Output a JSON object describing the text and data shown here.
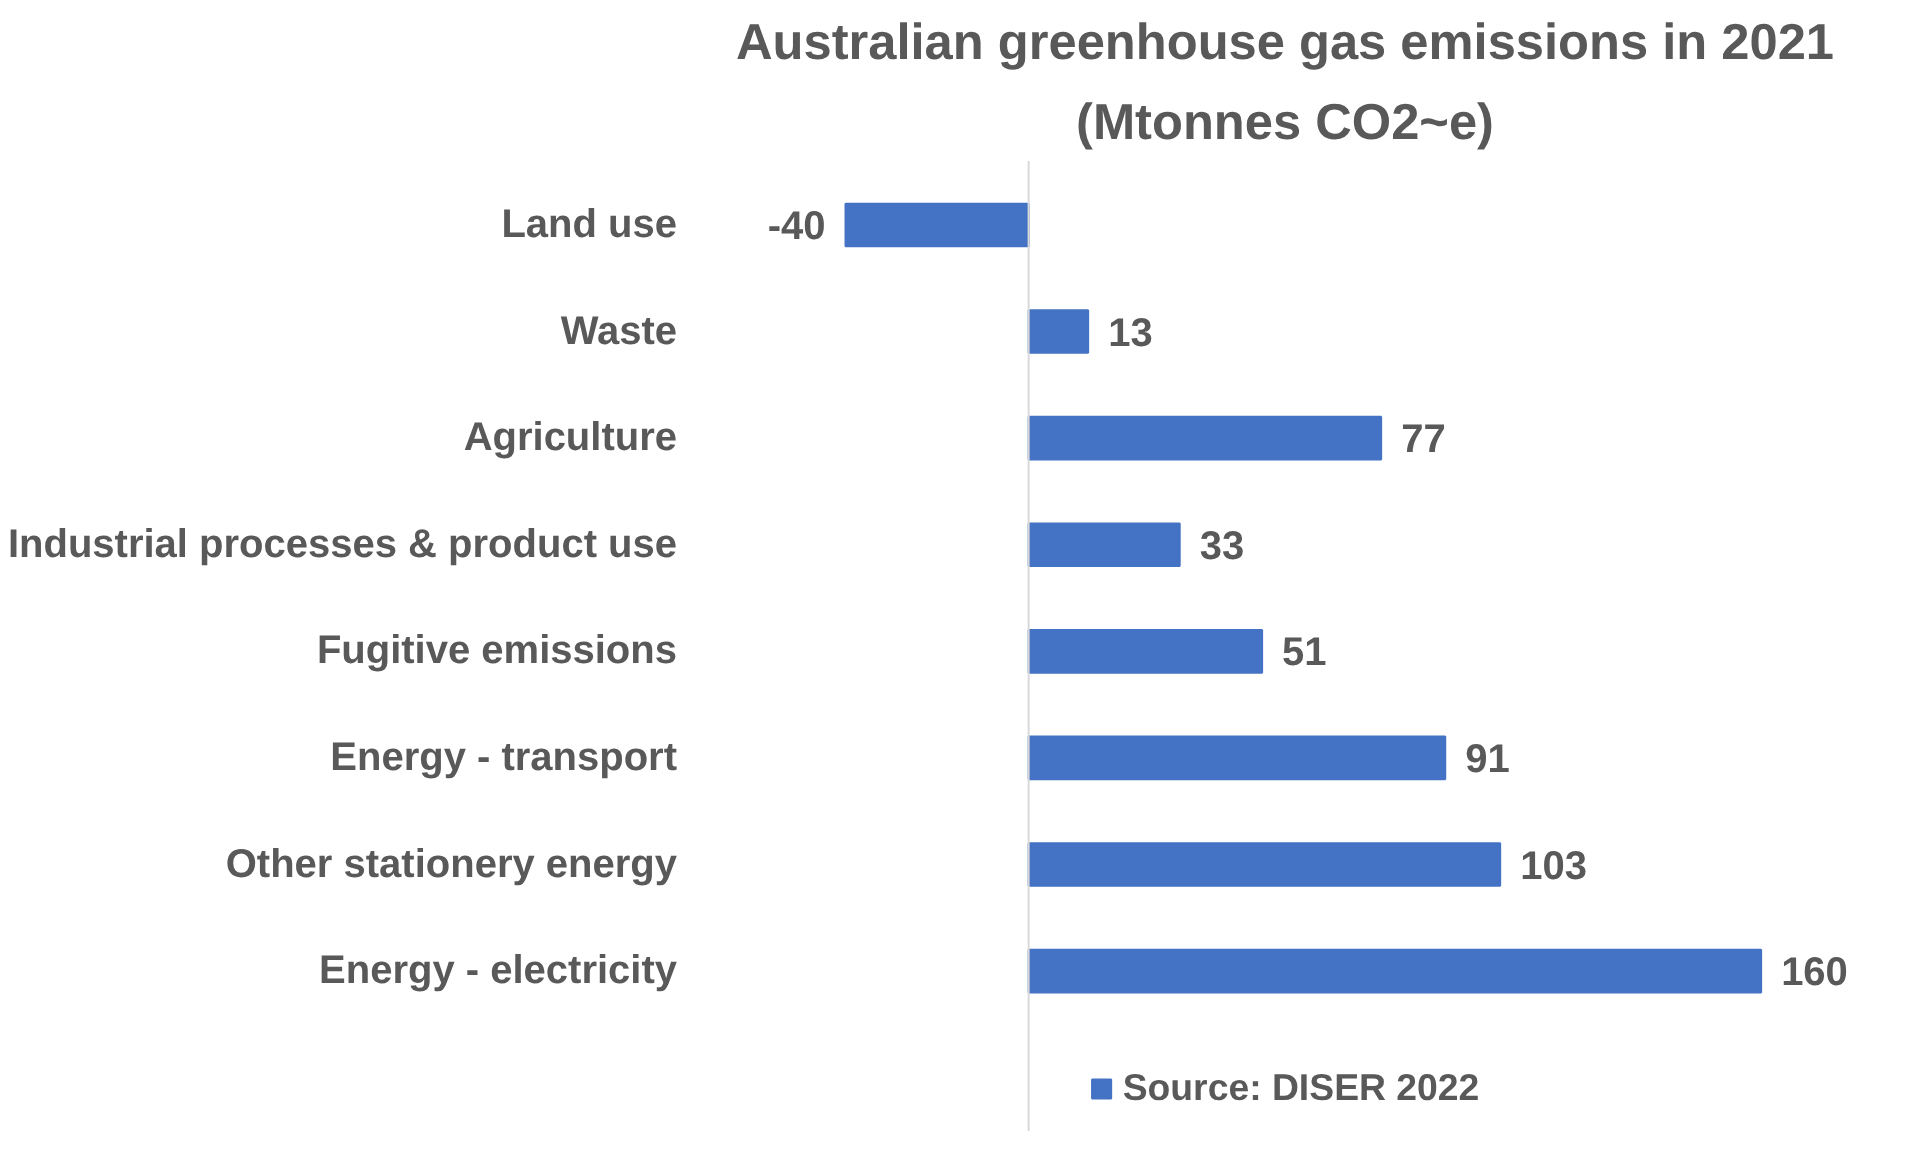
{
  "chart_data": {
    "type": "bar",
    "orientation": "horizontal",
    "title": "Australian greenhouse gas emissions in 2021",
    "subtitle": "(Mtonnes CO2~e)",
    "categories": [
      "Land use",
      "Waste",
      "Agriculture",
      "Industrial processes & product use",
      "Fugitive emissions",
      "Energy - transport",
      "Other stationery energy",
      "Energy - electricity"
    ],
    "series": [
      {
        "name": "Source: DISER 2022",
        "color": "#4472c4",
        "values": [
          -40,
          13,
          77,
          33,
          51,
          91,
          103,
          160
        ]
      }
    ],
    "data_labels": true,
    "legend": "bottom",
    "grid": false,
    "tick_labels": "y"
  }
}
